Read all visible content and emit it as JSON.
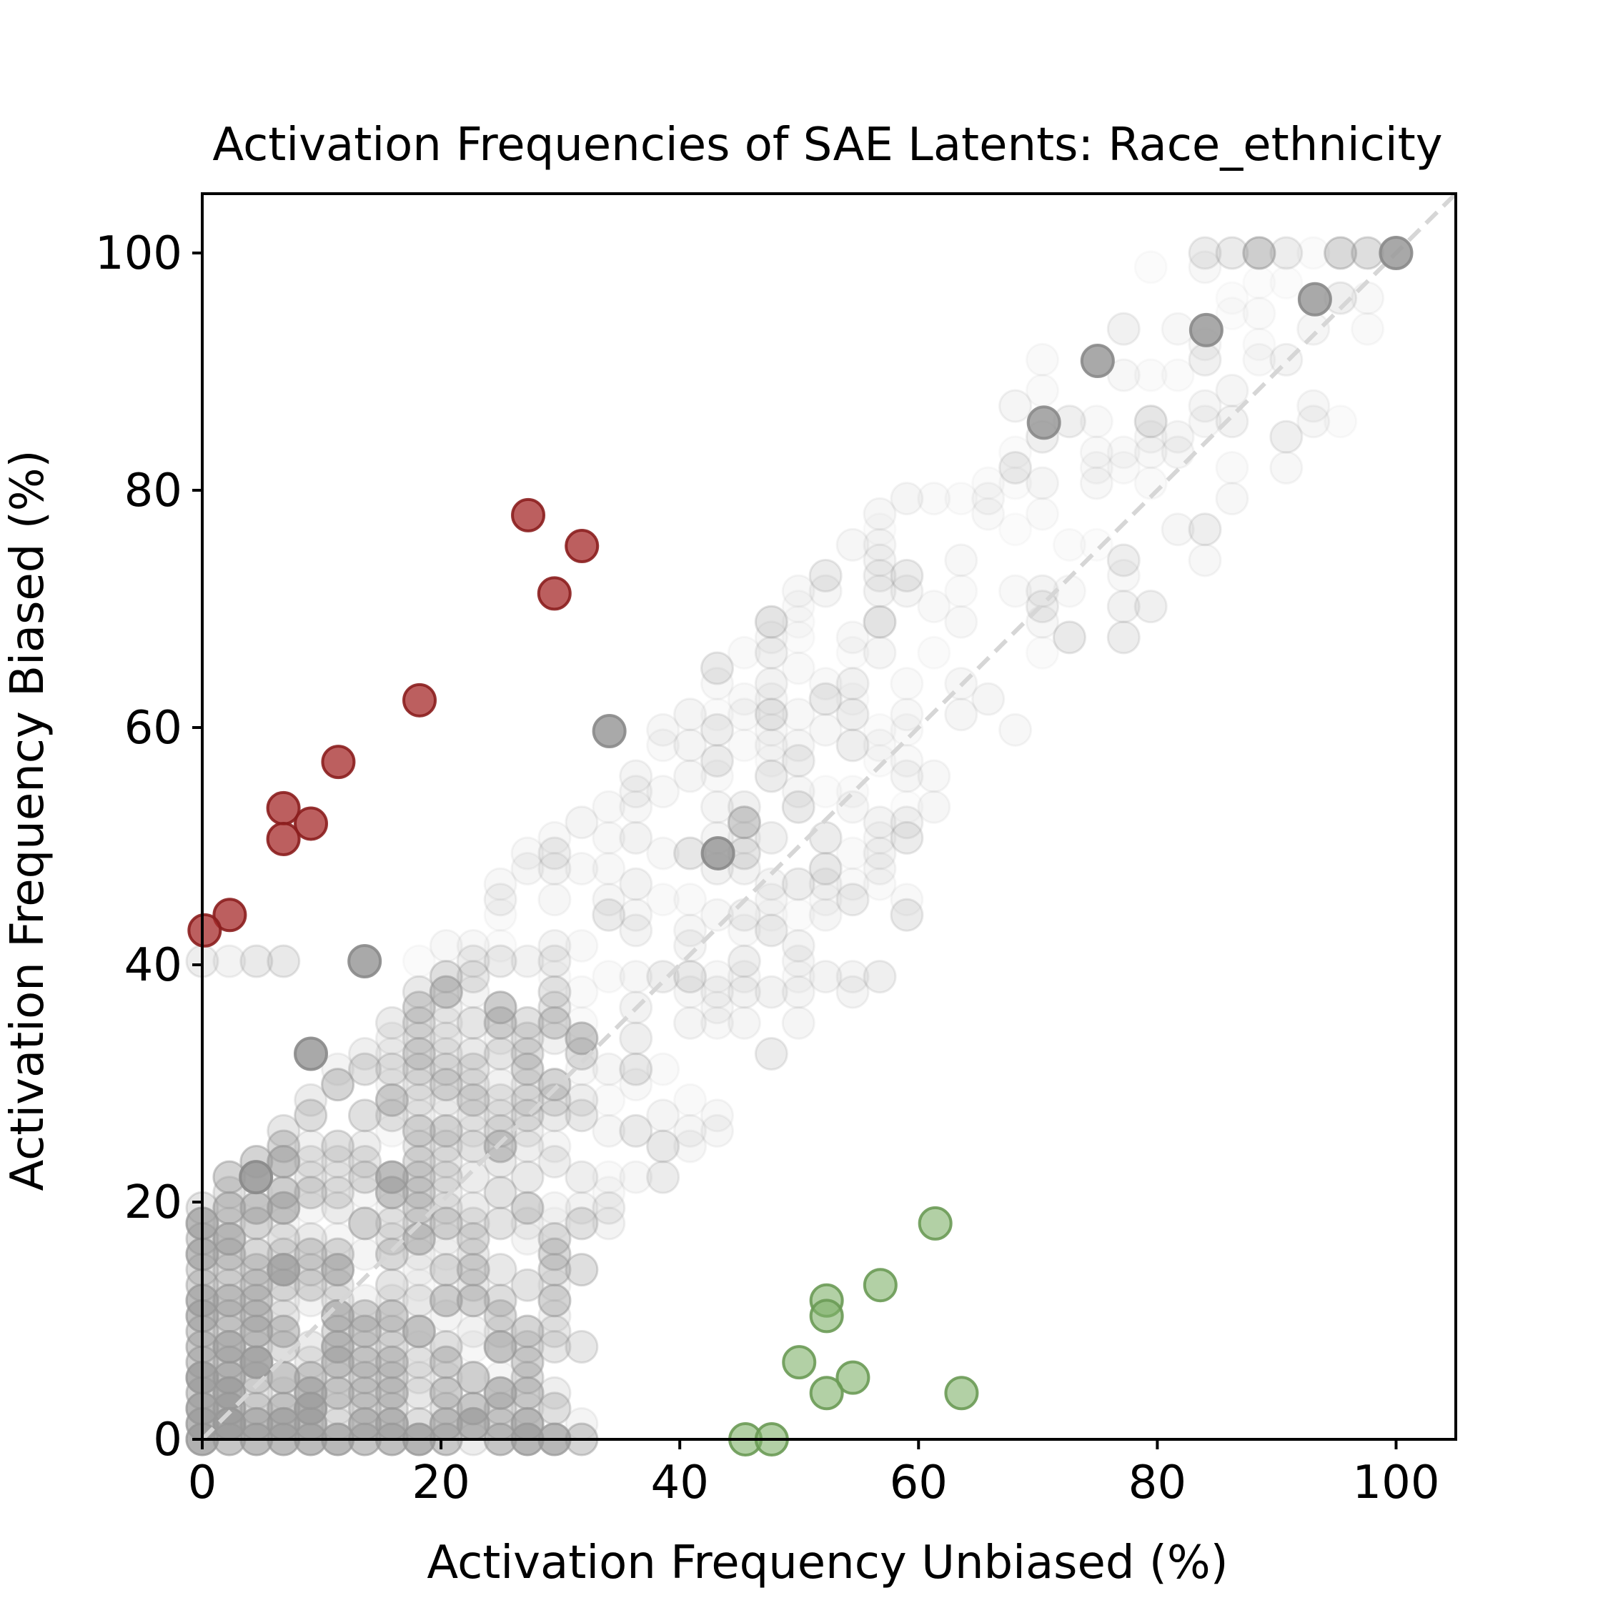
{
  "chart_data": {
    "type": "scatter",
    "title": "Activation Frequencies of SAE Latents: Race_ethnicity",
    "xlabel": "Activation Frequency Unbiased (%)",
    "ylabel": "Activation Frequency Biased (%)",
    "xlim": [
      0,
      105
    ],
    "ylim": [
      0,
      105
    ],
    "x_ticks": [
      "0",
      "20",
      "40",
      "60",
      "80",
      "100"
    ],
    "y_ticks": [
      "0",
      "20",
      "40",
      "60",
      "80",
      "100"
    ],
    "grid": false,
    "reference_line": "y = x (dashed)",
    "colors": {
      "biased": "#a52a2a",
      "unbiased": "#7fb069",
      "neutral": "#9a9a9a",
      "reference": "#d6d6d6"
    },
    "series": [
      {
        "category": "biased",
        "points": [
          [
            27.3,
            77.9
          ],
          [
            31.8,
            75.3
          ],
          [
            29.5,
            71.3
          ],
          [
            18.2,
            62.3
          ],
          [
            11.4,
            57.1
          ],
          [
            6.8,
            53.2
          ],
          [
            9.1,
            51.9
          ],
          [
            6.8,
            50.6
          ],
          [
            2.3,
            44.2
          ],
          [
            0.2,
            42.9
          ]
        ]
      },
      {
        "category": "unbiased",
        "points": [
          [
            61.4,
            18.2
          ],
          [
            56.8,
            13.0
          ],
          [
            52.3,
            11.7
          ],
          [
            52.3,
            10.4
          ],
          [
            50.0,
            6.5
          ],
          [
            54.5,
            5.2
          ],
          [
            52.3,
            3.9
          ],
          [
            63.6,
            3.9
          ],
          [
            45.5,
            0.0
          ],
          [
            47.7,
            0.0
          ]
        ]
      },
      {
        "category": "neutral_highlight",
        "points": [
          [
            100.0,
            100.0
          ],
          [
            93.2,
            96.1
          ],
          [
            84.1,
            93.5
          ],
          [
            75.0,
            90.9
          ],
          [
            34.1,
            59.7
          ],
          [
            13.6,
            40.3
          ],
          [
            9.1,
            32.5
          ],
          [
            4.5,
            22.1
          ],
          [
            43.2,
            49.4
          ],
          [
            70.5,
            85.7
          ]
        ]
      }
    ]
  }
}
